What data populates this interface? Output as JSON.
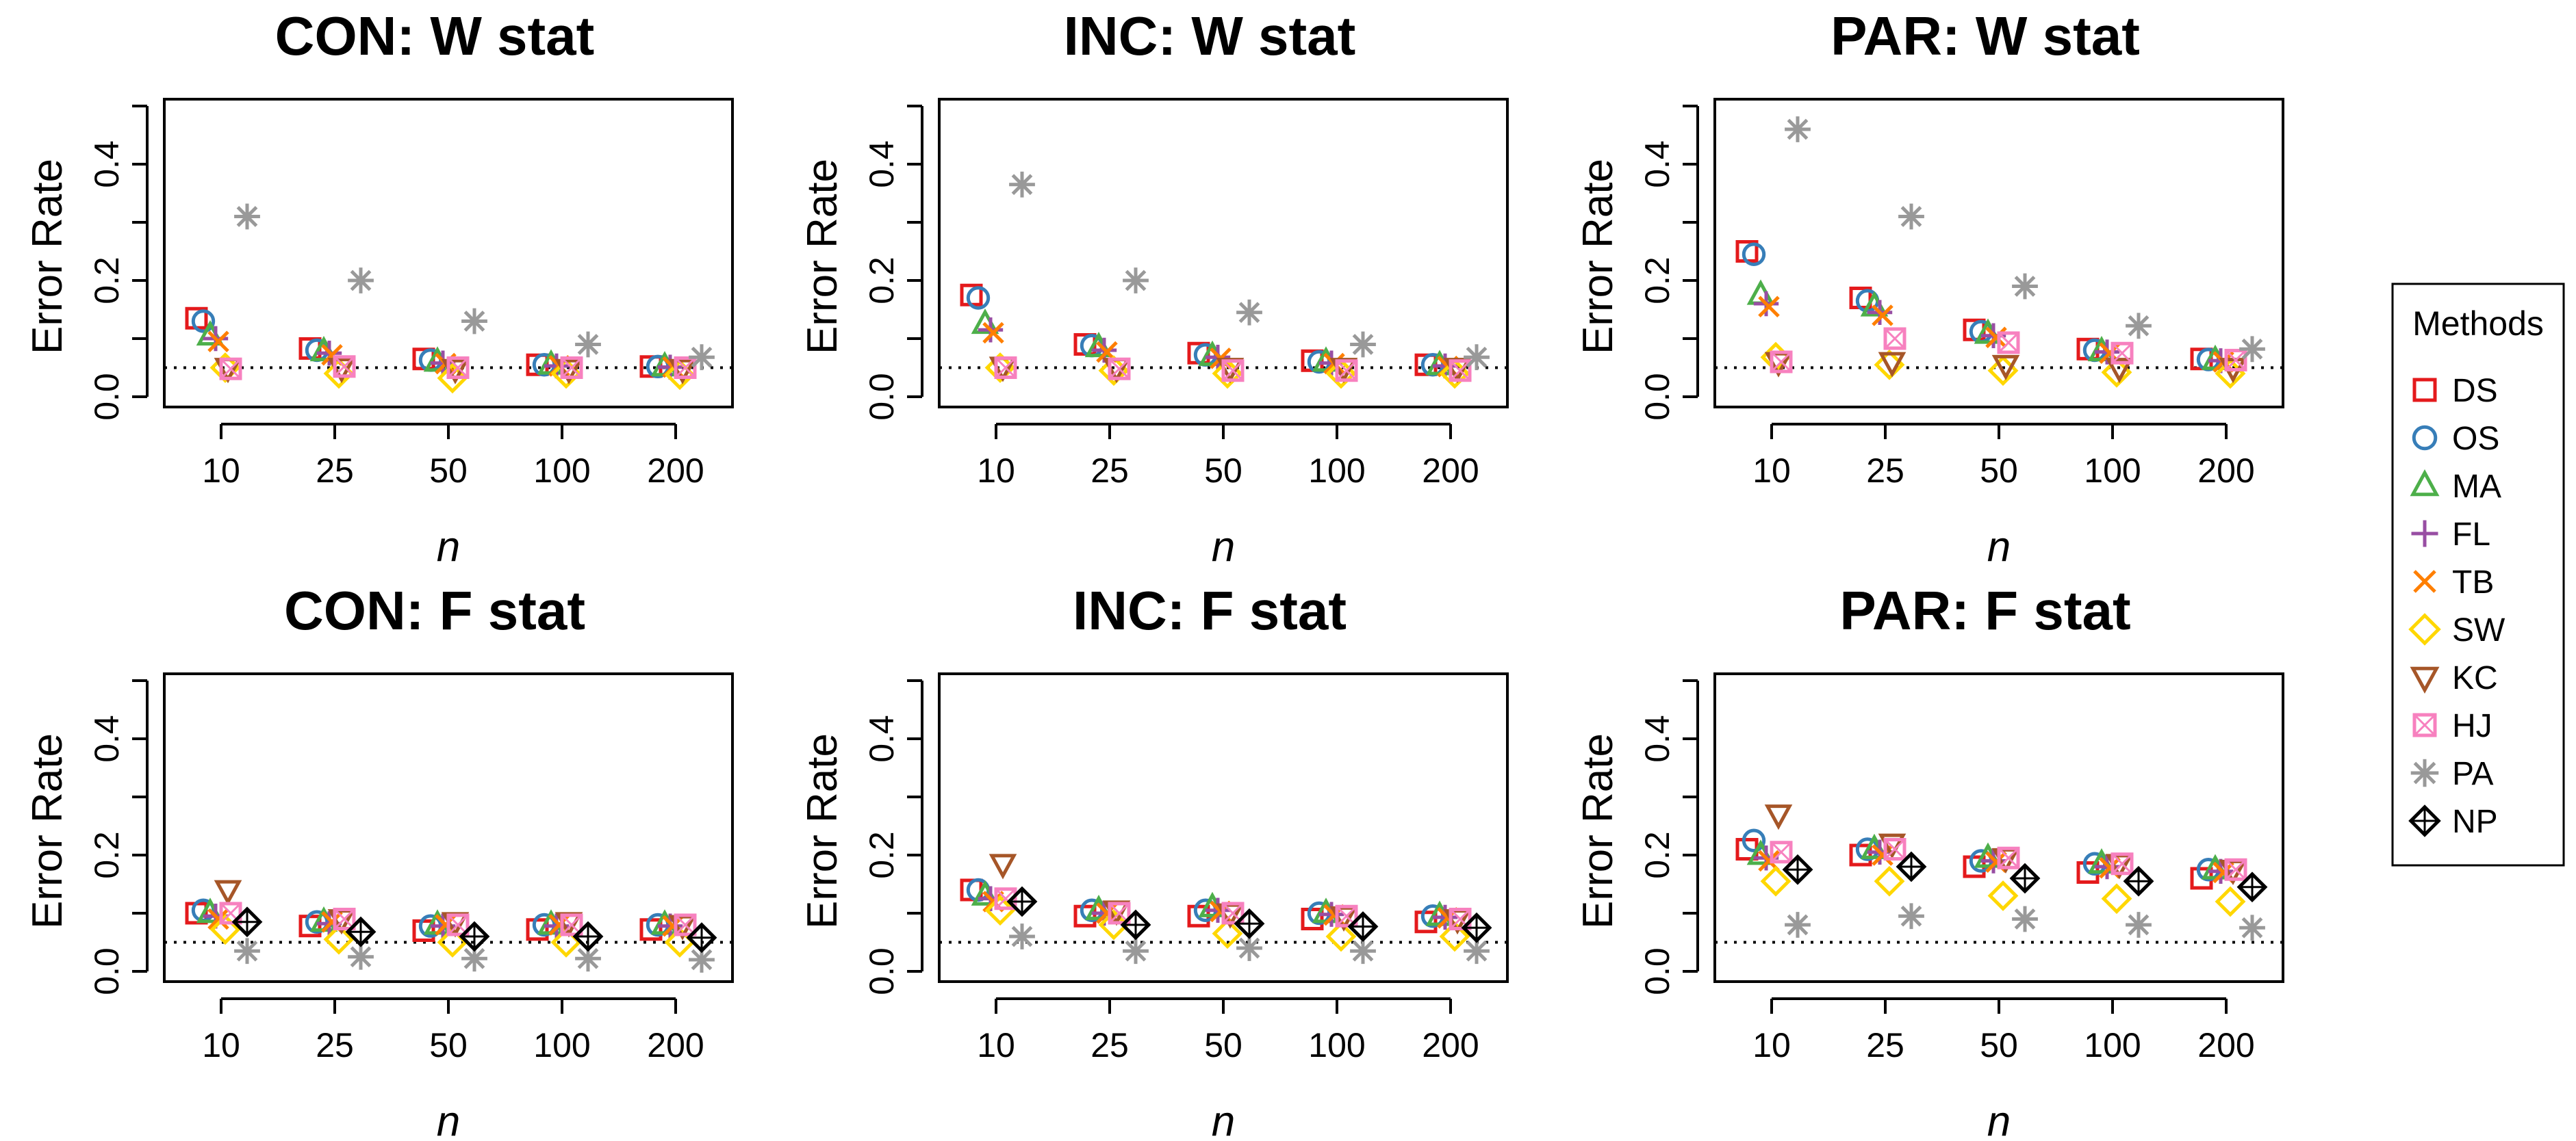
{
  "legend": {
    "title": "Methods",
    "items": [
      {
        "code": "DS",
        "label": "DS",
        "color": "#e41a1c",
        "shape": "square"
      },
      {
        "code": "OS",
        "label": "OS",
        "color": "#377eb8",
        "shape": "circle"
      },
      {
        "code": "MA",
        "label": "MA",
        "color": "#4daf4a",
        "shape": "triangle-up"
      },
      {
        "code": "FL",
        "label": "FL",
        "color": "#984ea3",
        "shape": "plus"
      },
      {
        "code": "TB",
        "label": "TB",
        "color": "#ff7f00",
        "shape": "cross"
      },
      {
        "code": "SW",
        "label": "SW",
        "color": "#ffd700",
        "shape": "diamond"
      },
      {
        "code": "KC",
        "label": "KC",
        "color": "#a65628",
        "shape": "triangle-down"
      },
      {
        "code": "HJ",
        "label": "HJ",
        "color": "#f781bf",
        "shape": "square-cross"
      },
      {
        "code": "PA",
        "label": "PA",
        "color": "#999999",
        "shape": "asterisk"
      },
      {
        "code": "NP",
        "label": "NP",
        "color": "#000000",
        "shape": "diamond-plus"
      }
    ]
  },
  "chart_data": [
    {
      "type": "scatter",
      "title": "CON: W stat",
      "xlabel": "n",
      "ylabel": "Error Rate",
      "categories": [
        "10",
        "25",
        "50",
        "100",
        "200"
      ],
      "yticks": [
        "0.0",
        "0.2",
        "0.4"
      ],
      "ylim": [
        0,
        0.5
      ],
      "reference_line": 0.05,
      "series": [
        {
          "name": "DS",
          "values": [
            0.135,
            0.083,
            0.065,
            0.055,
            0.052
          ]
        },
        {
          "name": "OS",
          "values": [
            0.13,
            0.08,
            0.063,
            0.055,
            0.052
          ]
        },
        {
          "name": "MA",
          "values": [
            0.105,
            0.078,
            0.06,
            0.055,
            0.052
          ]
        },
        {
          "name": "FL",
          "values": [
            0.1,
            0.075,
            0.058,
            0.053,
            0.051
          ]
        },
        {
          "name": "TB",
          "values": [
            0.095,
            0.072,
            0.057,
            0.053,
            0.051
          ]
        },
        {
          "name": "SW",
          "values": [
            0.05,
            0.04,
            0.032,
            0.04,
            0.038
          ]
        },
        {
          "name": "KC",
          "values": [
            0.05,
            0.05,
            0.048,
            0.048,
            0.048
          ]
        },
        {
          "name": "HJ",
          "values": [
            0.048,
            0.052,
            0.05,
            0.05,
            0.05
          ]
        },
        {
          "name": "PA",
          "values": [
            0.31,
            0.2,
            0.13,
            0.09,
            0.068
          ]
        }
      ]
    },
    {
      "type": "scatter",
      "title": "INC: W stat",
      "xlabel": "n",
      "ylabel": "Error Rate",
      "categories": [
        "10",
        "25",
        "50",
        "100",
        "200"
      ],
      "yticks": [
        "0.0",
        "0.2",
        "0.4"
      ],
      "ylim": [
        0,
        0.5
      ],
      "reference_line": 0.05,
      "series": [
        {
          "name": "DS",
          "values": [
            0.175,
            0.09,
            0.075,
            0.062,
            0.055
          ]
        },
        {
          "name": "OS",
          "values": [
            0.17,
            0.088,
            0.072,
            0.06,
            0.055
          ]
        },
        {
          "name": "MA",
          "values": [
            0.125,
            0.085,
            0.07,
            0.06,
            0.054
          ]
        },
        {
          "name": "FL",
          "values": [
            0.115,
            0.08,
            0.068,
            0.058,
            0.053
          ]
        },
        {
          "name": "TB",
          "values": [
            0.11,
            0.077,
            0.066,
            0.057,
            0.052
          ]
        },
        {
          "name": "SW",
          "values": [
            0.05,
            0.045,
            0.04,
            0.04,
            0.04
          ]
        },
        {
          "name": "KC",
          "values": [
            0.052,
            0.05,
            0.05,
            0.05,
            0.05
          ]
        },
        {
          "name": "HJ",
          "values": [
            0.05,
            0.048,
            0.045,
            0.045,
            0.045
          ]
        },
        {
          "name": "PA",
          "values": [
            0.365,
            0.2,
            0.145,
            0.09,
            0.068
          ]
        }
      ]
    },
    {
      "type": "scatter",
      "title": "PAR: W stat",
      "xlabel": "n",
      "ylabel": "Error Rate",
      "categories": [
        "10",
        "25",
        "50",
        "100",
        "200"
      ],
      "yticks": [
        "0.0",
        "0.2",
        "0.4"
      ],
      "ylim": [
        0,
        0.5
      ],
      "reference_line": 0.05,
      "series": [
        {
          "name": "DS",
          "values": [
            0.25,
            0.17,
            0.115,
            0.082,
            0.065
          ]
        },
        {
          "name": "OS",
          "values": [
            0.245,
            0.165,
            0.112,
            0.08,
            0.064
          ]
        },
        {
          "name": "MA",
          "values": [
            0.175,
            0.155,
            0.108,
            0.078,
            0.063
          ]
        },
        {
          "name": "FL",
          "values": [
            0.16,
            0.145,
            0.105,
            0.077,
            0.062
          ]
        },
        {
          "name": "TB",
          "values": [
            0.155,
            0.14,
            0.102,
            0.075,
            0.06
          ]
        },
        {
          "name": "SW",
          "values": [
            0.068,
            0.055,
            0.045,
            0.042,
            0.04
          ]
        },
        {
          "name": "KC",
          "values": [
            0.06,
            0.06,
            0.055,
            0.05,
            0.05
          ]
        },
        {
          "name": "HJ",
          "values": [
            0.06,
            0.1,
            0.093,
            0.075,
            0.063
          ]
        },
        {
          "name": "PA",
          "values": [
            0.46,
            0.31,
            0.19,
            0.122,
            0.082
          ]
        }
      ]
    },
    {
      "type": "scatter",
      "title": "CON: F stat",
      "xlabel": "n",
      "ylabel": "Error Rate",
      "categories": [
        "10",
        "25",
        "50",
        "100",
        "200"
      ],
      "yticks": [
        "0.0",
        "0.2",
        "0.4"
      ],
      "ylim": [
        0,
        0.5
      ],
      "reference_line": 0.05,
      "series": [
        {
          "name": "DS",
          "values": [
            0.1,
            0.078,
            0.07,
            0.072,
            0.072
          ]
        },
        {
          "name": "OS",
          "values": [
            0.105,
            0.085,
            0.078,
            0.08,
            0.08
          ]
        },
        {
          "name": "MA",
          "values": [
            0.1,
            0.085,
            0.08,
            0.08,
            0.08
          ]
        },
        {
          "name": "FL",
          "values": [
            0.095,
            0.082,
            0.078,
            0.078,
            0.078
          ]
        },
        {
          "name": "TB",
          "values": [
            0.09,
            0.085,
            0.08,
            0.08,
            0.078
          ]
        },
        {
          "name": "SW",
          "values": [
            0.072,
            0.055,
            0.05,
            0.05,
            0.05
          ]
        },
        {
          "name": "KC",
          "values": [
            0.14,
            0.09,
            0.085,
            0.085,
            0.08
          ]
        },
        {
          "name": "HJ",
          "values": [
            0.1,
            0.09,
            0.08,
            0.08,
            0.08
          ]
        },
        {
          "name": "PA",
          "values": [
            0.035,
            0.025,
            0.022,
            0.022,
            0.02
          ]
        },
        {
          "name": "NP",
          "values": [
            0.085,
            0.068,
            0.06,
            0.06,
            0.058
          ]
        }
      ]
    },
    {
      "type": "scatter",
      "title": "INC: F stat",
      "xlabel": "n",
      "ylabel": "Error Rate",
      "categories": [
        "10",
        "25",
        "50",
        "100",
        "200"
      ],
      "yticks": [
        "0.0",
        "0.2",
        "0.4"
      ],
      "ylim": [
        0,
        0.5
      ],
      "reference_line": 0.05,
      "series": [
        {
          "name": "DS",
          "values": [
            0.14,
            0.095,
            0.095,
            0.09,
            0.085
          ]
        },
        {
          "name": "OS",
          "values": [
            0.14,
            0.105,
            0.105,
            0.1,
            0.095
          ]
        },
        {
          "name": "MA",
          "values": [
            0.13,
            0.105,
            0.11,
            0.1,
            0.095
          ]
        },
        {
          "name": "FL",
          "values": [
            0.125,
            0.1,
            0.105,
            0.098,
            0.093
          ]
        },
        {
          "name": "TB",
          "values": [
            0.12,
            0.1,
            0.103,
            0.097,
            0.092
          ]
        },
        {
          "name": "SW",
          "values": [
            0.105,
            0.08,
            0.065,
            0.06,
            0.06
          ]
        },
        {
          "name": "KC",
          "values": [
            0.185,
            0.105,
            0.1,
            0.095,
            0.09
          ]
        },
        {
          "name": "HJ",
          "values": [
            0.125,
            0.1,
            0.1,
            0.095,
            0.09
          ]
        },
        {
          "name": "PA",
          "values": [
            0.06,
            0.035,
            0.04,
            0.035,
            0.035
          ]
        },
        {
          "name": "NP",
          "values": [
            0.12,
            0.08,
            0.082,
            0.077,
            0.075
          ]
        }
      ]
    },
    {
      "type": "scatter",
      "title": "PAR: F stat",
      "xlabel": "n",
      "ylabel": "Error Rate",
      "categories": [
        "10",
        "25",
        "50",
        "100",
        "200"
      ],
      "yticks": [
        "0.0",
        "0.2",
        "0.4"
      ],
      "ylim": [
        0,
        0.5
      ],
      "reference_line": 0.05,
      "series": [
        {
          "name": "DS",
          "values": [
            0.21,
            0.2,
            0.18,
            0.17,
            0.16
          ]
        },
        {
          "name": "OS",
          "values": [
            0.225,
            0.21,
            0.19,
            0.185,
            0.175
          ]
        },
        {
          "name": "MA",
          "values": [
            0.2,
            0.21,
            0.195,
            0.185,
            0.175
          ]
        },
        {
          "name": "FL",
          "values": [
            0.195,
            0.205,
            0.19,
            0.18,
            0.172
          ]
        },
        {
          "name": "TB",
          "values": [
            0.19,
            0.2,
            0.188,
            0.178,
            0.17
          ]
        },
        {
          "name": "SW",
          "values": [
            0.155,
            0.155,
            0.13,
            0.125,
            0.12
          ]
        },
        {
          "name": "KC",
          "values": [
            0.27,
            0.22,
            0.195,
            0.185,
            0.175
          ]
        },
        {
          "name": "HJ",
          "values": [
            0.205,
            0.21,
            0.195,
            0.185,
            0.175
          ]
        },
        {
          "name": "PA",
          "values": [
            0.08,
            0.095,
            0.09,
            0.08,
            0.075
          ]
        },
        {
          "name": "NP",
          "values": [
            0.175,
            0.18,
            0.16,
            0.155,
            0.145
          ]
        }
      ]
    }
  ]
}
